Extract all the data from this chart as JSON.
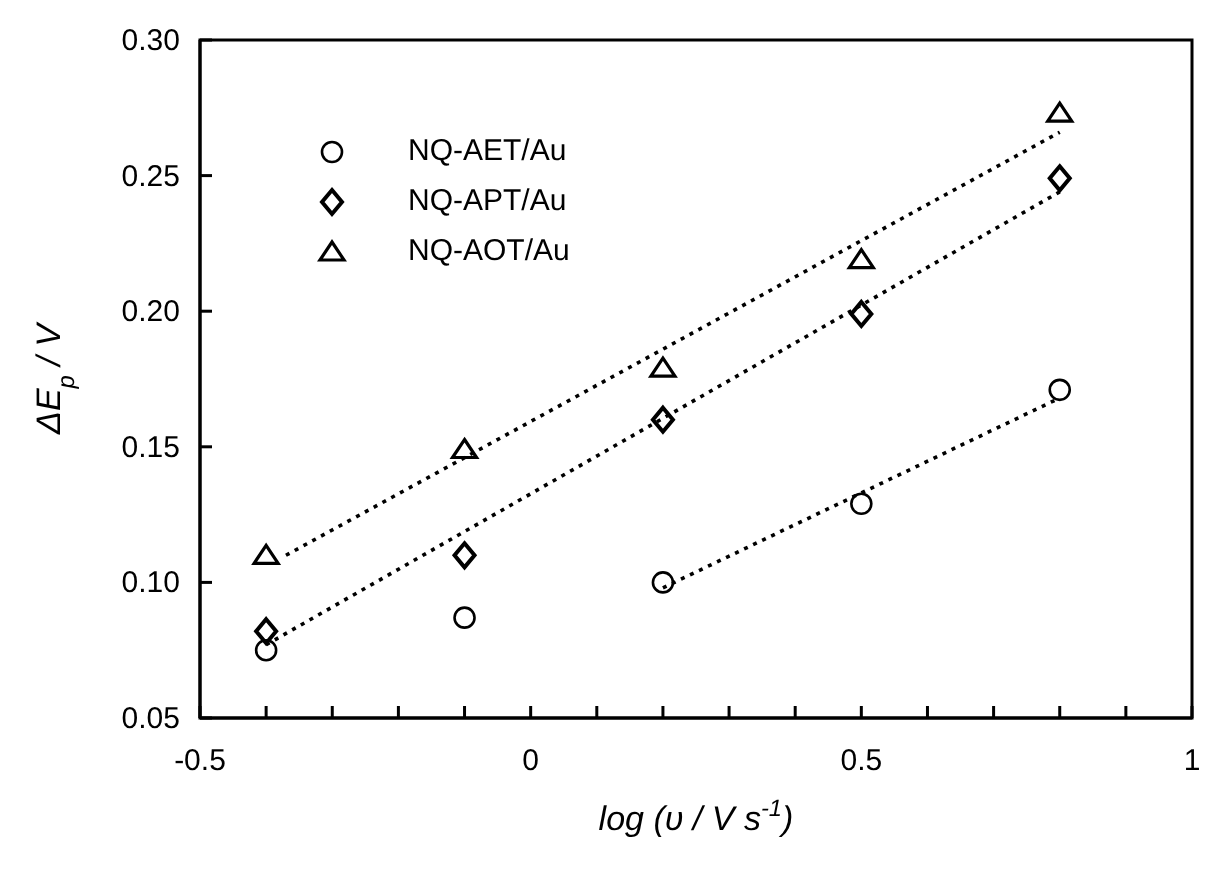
{
  "chart_data": {
    "type": "scatter",
    "xlabel": "log (υ / V s$^{-1}$)",
    "ylabel": "ΔE$_{p}$ / V",
    "xlim": [
      -0.5,
      1
    ],
    "xticks": [
      -0.5,
      {
        "value": -0.4,
        "label": null
      },
      {
        "value": -0.3,
        "label": null
      },
      {
        "value": -0.2,
        "label": null
      },
      {
        "value": -0.1,
        "label": null
      },
      0,
      {
        "value": 0.1,
        "label": null
      },
      {
        "value": 0.2,
        "label": null
      },
      {
        "value": 0.3,
        "label": null
      },
      {
        "value": 0.4,
        "label": null
      },
      0.5,
      {
        "value": 0.6,
        "label": null
      },
      {
        "value": 0.7,
        "label": null
      },
      {
        "value": 0.8,
        "label": null
      },
      {
        "value": 0.9,
        "label": null
      },
      1
    ],
    "ylim": [
      0.05,
      0.3
    ],
    "yticks": [
      {
        "value": 0.05,
        "label": "0.05"
      },
      {
        "value": 0.1,
        "label": "0.10"
      },
      {
        "value": 0.15,
        "label": "0.15"
      },
      {
        "value": 0.2,
        "label": "0.20"
      },
      {
        "value": 0.25,
        "label": "0.25"
      },
      {
        "value": 0.3,
        "label": "0.30"
      }
    ],
    "grid": false,
    "legend": "top left",
    "x": [
      -0.4,
      -0.1,
      0.2,
      0.5,
      0.8
    ],
    "series": [
      {
        "name": "NQ-AET/Au",
        "color": "#000000",
        "marker": "circle",
        "values": [
          0.075,
          0.087,
          0.1,
          0.129,
          0.171
        ]
      },
      {
        "name": "NQ-APT/Au",
        "color": "#000000",
        "marker": "diamond",
        "values": [
          0.082,
          0.11,
          0.16,
          0.199,
          0.249
        ]
      },
      {
        "name": "NQ-AOT/Au",
        "color": "#000000",
        "marker": "triangle",
        "values": [
          0.11,
          0.149,
          0.179,
          0.219,
          0.273
        ]
      },
      {
        "type": "line",
        "color": "#000000",
        "marker": "none",
        "line_style": "dotted",
        "x": [
          0.2,
          0.8
        ],
        "values": [
          0.098,
          0.168
        ]
      },
      {
        "type": "line",
        "color": "#000000",
        "marker": "none",
        "line_style": "dotted",
        "x": [
          -0.4,
          0.8
        ],
        "values": [
          0.077,
          0.244
        ]
      },
      {
        "type": "line",
        "color": "#000000",
        "marker": "none",
        "line_style": "dotted",
        "x": [
          -0.37,
          0.8
        ],
        "values": [
          0.11,
          0.266
        ]
      }
    ]
  }
}
